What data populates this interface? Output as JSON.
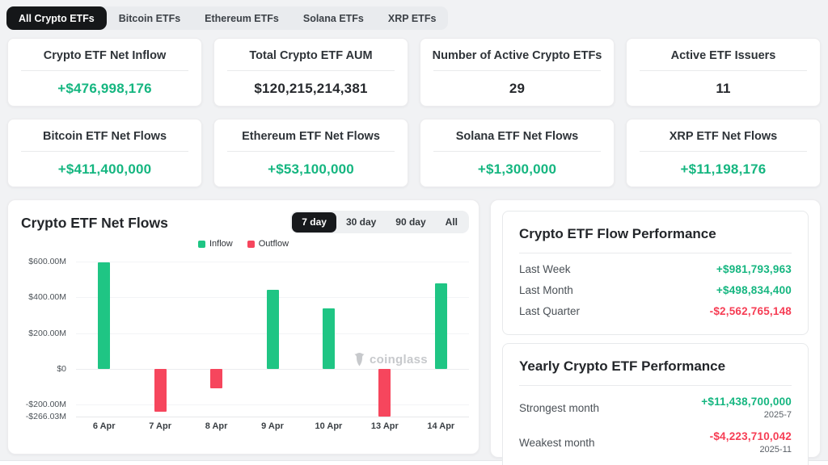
{
  "tabs": {
    "items": [
      {
        "label": "All Crypto ETFs",
        "active": true
      },
      {
        "label": "Bitcoin ETFs",
        "active": false
      },
      {
        "label": "Ethereum ETFs",
        "active": false
      },
      {
        "label": "Solana ETFs",
        "active": false
      },
      {
        "label": "XRP ETFs",
        "active": false
      }
    ]
  },
  "stats": [
    {
      "title": "Crypto ETF Net Inflow",
      "value": "+$476,998,176"
    },
    {
      "title": "Total Crypto ETF AUM",
      "value": "$120,215,214,381"
    },
    {
      "title": "Number of Active Crypto ETFs",
      "value": "29"
    },
    {
      "title": "Active ETF Issuers",
      "value": "11"
    },
    {
      "title": "Bitcoin ETF Net Flows",
      "value": "+$411,400,000"
    },
    {
      "title": "Ethereum ETF Net Flows",
      "value": "+$53,100,000"
    },
    {
      "title": "Solana ETF Net Flows",
      "value": "+$1,300,000"
    },
    {
      "title": "XRP ETF Net Flows",
      "value": "+$11,198,176"
    }
  ],
  "chart": {
    "title": "Crypto ETF Net Flows",
    "range_tabs": [
      "7 day",
      "30 day",
      "90 day",
      "All"
    ],
    "active_range": "7 day",
    "watermark": "coinglass"
  },
  "chart_data": {
    "type": "bar",
    "title": "Crypto ETF Net Flows",
    "categories": [
      "6 Apr",
      "7 Apr",
      "8 Apr",
      "9 Apr",
      "10 Apr",
      "13 Apr",
      "14 Apr"
    ],
    "values": [
      595,
      -240,
      -110,
      440,
      340,
      -266.03,
      477
    ],
    "unit": "USD millions",
    "ylim": [
      -266.03,
      600
    ],
    "y_ticks": [
      {
        "value": 600,
        "label": "$600.00M"
      },
      {
        "value": 400,
        "label": "$400.00M"
      },
      {
        "value": 200,
        "label": "$200.00M"
      },
      {
        "value": 0,
        "label": "$0"
      },
      {
        "value": -200,
        "label": "-$200.00M"
      },
      {
        "value": -266.03,
        "label": "-$266.03M"
      }
    ],
    "legend": [
      {
        "label": "Inflow",
        "color": "#1fc584"
      },
      {
        "label": "Outflow",
        "color": "#f6465d"
      }
    ],
    "legend_position": "top-center",
    "grid": true,
    "positive_color": "#1fc584",
    "negative_color": "#f6465d"
  },
  "flow_performance": {
    "title": "Crypto ETF Flow Performance",
    "rows": [
      {
        "label": "Last Week",
        "value": "+$981,793,963",
        "sentiment": "positive"
      },
      {
        "label": "Last Month",
        "value": "+$498,834,400",
        "sentiment": "positive"
      },
      {
        "label": "Last Quarter",
        "value": "-$2,562,765,148",
        "sentiment": "negative"
      }
    ]
  },
  "yearly_performance": {
    "title": "Yearly Crypto ETF Performance",
    "rows": [
      {
        "label": "Strongest month",
        "value": "+$11,438,700,000",
        "date": "2025-7",
        "sentiment": "positive"
      },
      {
        "label": "Weakest month",
        "value": "-$4,223,710,042",
        "date": "2025-11",
        "sentiment": "negative"
      }
    ]
  },
  "colors": {
    "positive_text": "#15b680",
    "negative_text": "#f63d54",
    "bar_green": "#1fc584",
    "bar_red": "#f6465d",
    "active_tab_bg": "#151719",
    "page_bg": "#f1f2f4"
  }
}
